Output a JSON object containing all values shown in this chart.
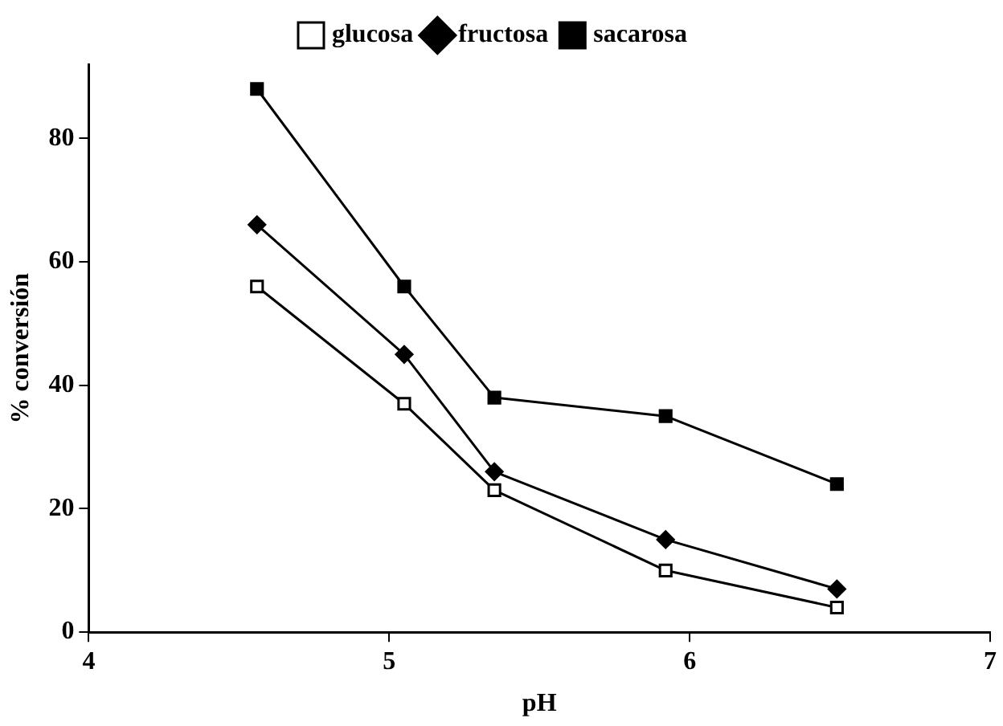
{
  "chart_data": {
    "type": "line",
    "xlabel": "pH",
    "ylabel": "% conversión",
    "xlim": [
      4,
      7
    ],
    "xticks": [
      4,
      5,
      6,
      7
    ],
    "ylim": [
      0,
      92
    ],
    "yticks": [
      0,
      20,
      40,
      60,
      80
    ],
    "grid": false,
    "legend": "top",
    "line_style": "solid",
    "series": [
      {
        "name": "glucosa",
        "color": "#000000",
        "marker": "square-open",
        "x": [
          4.56,
          5.05,
          5.35,
          5.92,
          6.49
        ],
        "values": [
          56,
          37,
          23,
          10,
          4
        ]
      },
      {
        "name": "fructosa",
        "color": "#000000",
        "marker": "diamond",
        "x": [
          4.56,
          5.05,
          5.35,
          5.92,
          6.49
        ],
        "values": [
          66,
          45,
          26,
          15,
          7
        ]
      },
      {
        "name": "sacarosa",
        "color": "#000000",
        "marker": "square",
        "x": [
          4.56,
          5.05,
          5.35,
          5.92,
          6.49
        ],
        "values": [
          88,
          56,
          38,
          35,
          24
        ]
      }
    ]
  }
}
